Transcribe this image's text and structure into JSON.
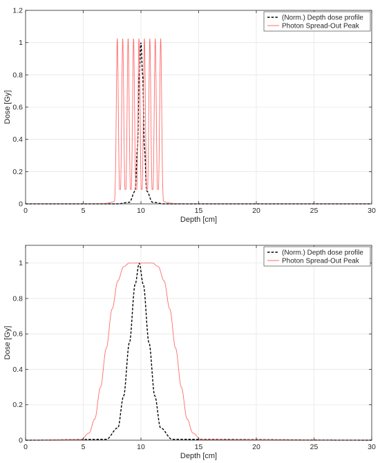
{
  "chart_data": [
    {
      "type": "line",
      "title": "",
      "xlabel": "Depth [cm]",
      "ylabel": "Dose [Gy]",
      "xlim": [
        0,
        30
      ],
      "ylim": [
        0,
        1.2
      ],
      "xticks": [
        "0",
        "5",
        "10",
        "15",
        "20",
        "25",
        "30"
      ],
      "yticks": [
        "0",
        "0.2",
        "0.4",
        "0.6",
        "0.8",
        "1",
        "1.2"
      ],
      "grid": true,
      "legend": "top-right",
      "series": [
        {
          "name": "(Norm.) Depth dose profile",
          "style": "dashed",
          "color": "#000000",
          "x": [
            0,
            8.0,
            9.0,
            9.5,
            9.7,
            9.85,
            10.0,
            10.15,
            10.3,
            10.5,
            11.0,
            12.0,
            30
          ],
          "y": [
            0,
            0,
            0.01,
            0.08,
            0.35,
            0.8,
            1.0,
            0.8,
            0.35,
            0.08,
            0.01,
            0,
            0
          ]
        },
        {
          "name": "Photon Spread-Out Peak",
          "style": "solid",
          "color": "#ff6a6a",
          "peaks": [
            7.95,
            8.42,
            8.89,
            9.36,
            9.83,
            10.3,
            10.77,
            11.24,
            11.71
          ],
          "peak_max": 1.025,
          "valley_min": 0.09,
          "x": [
            0,
            6.0,
            7.0,
            7.5,
            7.8,
            7.95,
            12.0,
            12.5,
            13.0,
            30
          ],
          "y": [
            0,
            0,
            0.005,
            0.02,
            0.2,
            1.01,
            0.2,
            0.01,
            0,
            0
          ]
        }
      ]
    },
    {
      "type": "line",
      "title": "",
      "xlabel": "Depth [cm]",
      "ylabel": "Dose [Gy]",
      "xlim": [
        0,
        30
      ],
      "ylim": [
        0,
        1.1
      ],
      "xticks": [
        "0",
        "5",
        "10",
        "15",
        "20",
        "25",
        "30"
      ],
      "yticks": [
        "0",
        "0.2",
        "0.4",
        "0.6",
        "0.8",
        "1"
      ],
      "grid": true,
      "legend": "top-right",
      "series": [
        {
          "name": "(Norm.) Depth dose profile",
          "style": "dashed",
          "color": "#000000",
          "x": [
            0,
            7.0,
            8.0,
            8.5,
            9.0,
            9.5,
            9.85,
            10.2,
            10.7,
            11.2,
            11.7,
            12.7,
            30
          ],
          "y": [
            0,
            0.005,
            0.07,
            0.25,
            0.55,
            0.88,
            1.0,
            0.88,
            0.55,
            0.25,
            0.07,
            0.005,
            0
          ]
        },
        {
          "name": "Photon Spread-Out Peak",
          "style": "solid",
          "color": "#ff6a6a",
          "x": [
            0,
            4.8,
            5.5,
            6.0,
            6.5,
            7.0,
            7.5,
            8.0,
            8.5,
            9.0,
            10.0,
            11.0,
            11.5,
            12.0,
            12.5,
            13.0,
            13.5,
            14.0,
            14.5,
            15.2,
            30
          ],
          "y": [
            0,
            0.003,
            0.04,
            0.12,
            0.3,
            0.52,
            0.74,
            0.9,
            0.98,
            1.0,
            1.0,
            1.0,
            0.98,
            0.9,
            0.74,
            0.52,
            0.3,
            0.12,
            0.04,
            0.003,
            0
          ]
        }
      ]
    }
  ]
}
